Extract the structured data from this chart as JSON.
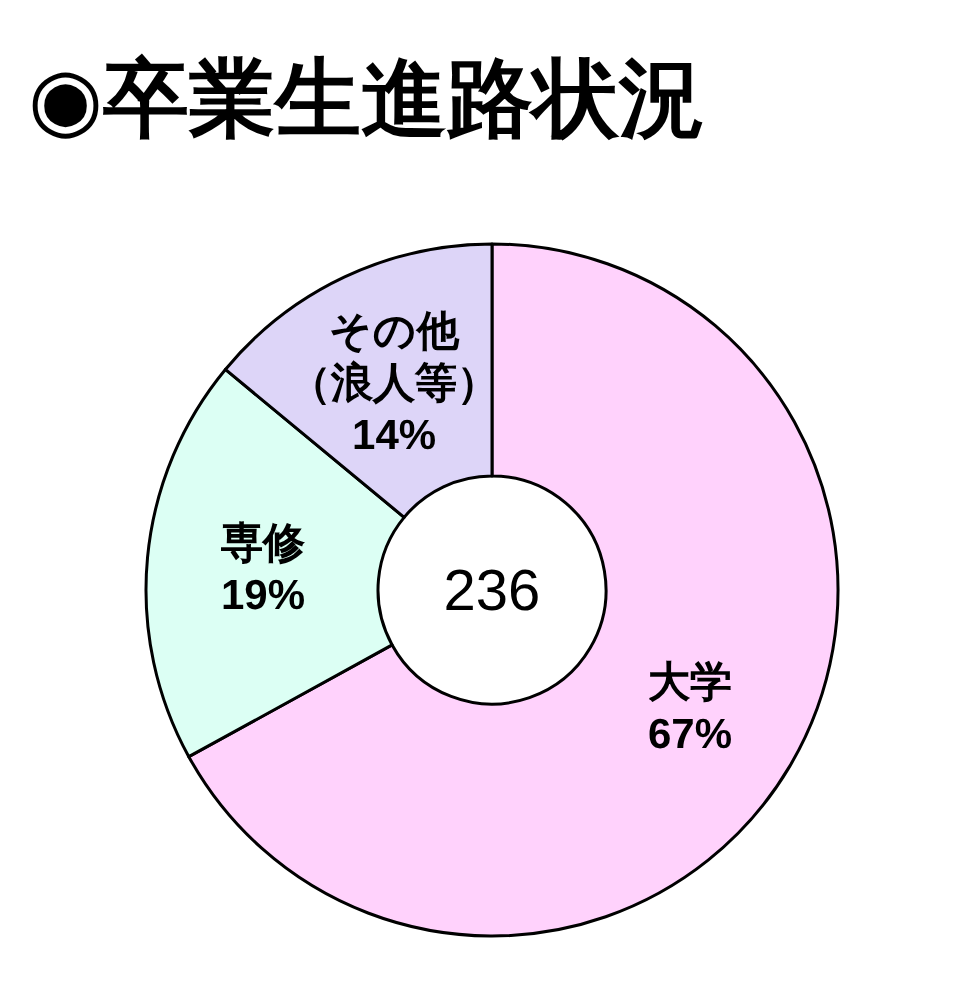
{
  "chart_data": {
    "type": "donut",
    "title": "◉卒業生進路状況",
    "categories": [
      "大学",
      "専修",
      "その他（浪人等）"
    ],
    "values": [
      67,
      19,
      14
    ],
    "colors": [
      "#ffd2fc",
      "#dcfff4",
      "#ddd5f8"
    ],
    "value_labels": [
      "67%",
      "19%",
      "14%"
    ],
    "annotations": [
      "236"
    ]
  }
}
